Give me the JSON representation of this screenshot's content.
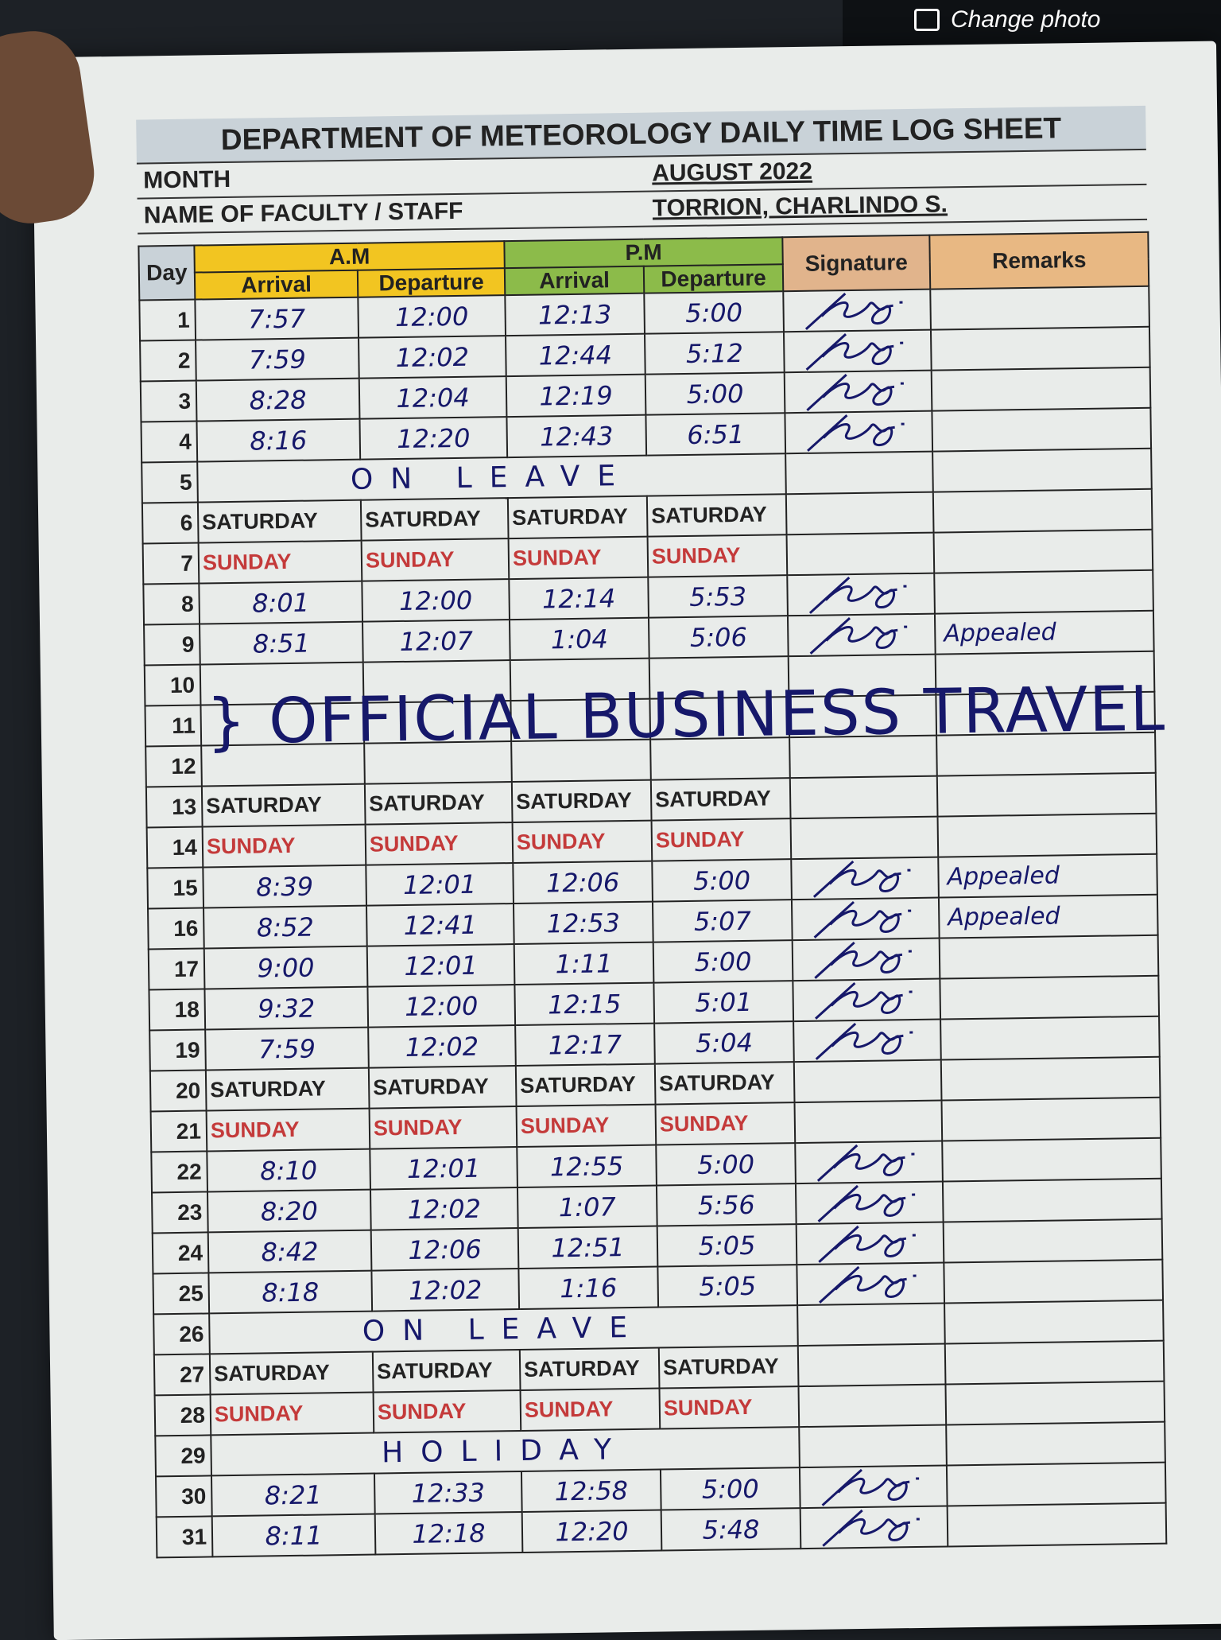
{
  "topbar": {
    "change_photo_label": "Change photo",
    "icon": "camera-icon"
  },
  "sheet": {
    "title": "DEPARTMENT OF METEOROLOGY DAILY TIME LOG SHEET",
    "month_label": "MONTH",
    "month_value": "AUGUST 2022",
    "name_label": "NAME OF FACULTY / STAFF",
    "name_value": "TORRION, CHARLINDO S."
  },
  "headers": {
    "day": "Day",
    "am": "A.M",
    "pm": "P.M",
    "arrival": "Arrival",
    "departure": "Departure",
    "signature": "Signature",
    "remarks": "Remarks"
  },
  "colors": {
    "am": "#f2c521",
    "pm": "#8cbb4a",
    "signature": "#e1b48c",
    "remarks": "#e8b883",
    "sunday": "#c43a3a",
    "ink": "#16186a"
  },
  "notes": {
    "official_business": "} OFFICIAL BUSINESS TRAVEL"
  },
  "rows": [
    {
      "day": "1",
      "type": "work",
      "v": [
        "7:57",
        "12:00",
        "12:13",
        "5:00"
      ],
      "signed": true,
      "remarks": ""
    },
    {
      "day": "2",
      "type": "work",
      "v": [
        "7:59",
        "12:02",
        "12:44",
        "5:12"
      ],
      "signed": true,
      "remarks": ""
    },
    {
      "day": "3",
      "type": "work",
      "v": [
        "8:28",
        "12:04",
        "12:19",
        "5:00"
      ],
      "signed": true,
      "remarks": ""
    },
    {
      "day": "4",
      "type": "work",
      "v": [
        "8:16",
        "12:20",
        "12:43",
        "6:51"
      ],
      "signed": true,
      "remarks": ""
    },
    {
      "day": "5",
      "type": "note",
      "note": "ON LEAVE",
      "signed": false,
      "remarks": ""
    },
    {
      "day": "6",
      "type": "sat",
      "label": "SATURDAY"
    },
    {
      "day": "7",
      "type": "sun",
      "label": "SUNDAY"
    },
    {
      "day": "8",
      "type": "work",
      "v": [
        "8:01",
        "12:00",
        "12:14",
        "5:53"
      ],
      "signed": true,
      "remarks": ""
    },
    {
      "day": "9",
      "type": "work",
      "v": [
        "8:51",
        "12:07",
        "1:04",
        "5:06"
      ],
      "signed": true,
      "remarks": "Appealed"
    },
    {
      "day": "10",
      "type": "ob"
    },
    {
      "day": "11",
      "type": "ob"
    },
    {
      "day": "12",
      "type": "ob"
    },
    {
      "day": "13",
      "type": "sat",
      "label": "SATURDAY"
    },
    {
      "day": "14",
      "type": "sun",
      "label": "SUNDAY"
    },
    {
      "day": "15",
      "type": "work",
      "v": [
        "8:39",
        "12:01",
        "12:06",
        "5:00"
      ],
      "signed": true,
      "remarks": "Appealed"
    },
    {
      "day": "16",
      "type": "work",
      "v": [
        "8:52",
        "12:41",
        "12:53",
        "5:07"
      ],
      "signed": true,
      "remarks": "Appealed"
    },
    {
      "day": "17",
      "type": "work",
      "v": [
        "9:00",
        "12:01",
        "1:11",
        "5:00"
      ],
      "signed": true,
      "remarks": ""
    },
    {
      "day": "18",
      "type": "work",
      "v": [
        "9:32",
        "12:00",
        "12:15",
        "5:01"
      ],
      "signed": true,
      "remarks": ""
    },
    {
      "day": "19",
      "type": "work",
      "v": [
        "7:59",
        "12:02",
        "12:17",
        "5:04"
      ],
      "signed": true,
      "remarks": ""
    },
    {
      "day": "20",
      "type": "sat",
      "label": "SATURDAY"
    },
    {
      "day": "21",
      "type": "sun",
      "label": "SUNDAY"
    },
    {
      "day": "22",
      "type": "work",
      "v": [
        "8:10",
        "12:01",
        "12:55",
        "5:00"
      ],
      "signed": true,
      "remarks": ""
    },
    {
      "day": "23",
      "type": "work",
      "v": [
        "8:20",
        "12:02",
        "1:07",
        "5:56"
      ],
      "signed": true,
      "remarks": ""
    },
    {
      "day": "24",
      "type": "work",
      "v": [
        "8:42",
        "12:06",
        "12:51",
        "5:05"
      ],
      "signed": true,
      "remarks": ""
    },
    {
      "day": "25",
      "type": "work",
      "v": [
        "8:18",
        "12:02",
        "1:16",
        "5:05"
      ],
      "signed": true,
      "remarks": ""
    },
    {
      "day": "26",
      "type": "note",
      "note": "ON LEAVE",
      "signed": false,
      "remarks": ""
    },
    {
      "day": "27",
      "type": "sat",
      "label": "SATURDAY"
    },
    {
      "day": "28",
      "type": "sun",
      "label": "SUNDAY"
    },
    {
      "day": "29",
      "type": "note",
      "note": "HOLIDAY",
      "signed": false,
      "remarks": ""
    },
    {
      "day": "30",
      "type": "work",
      "v": [
        "8:21",
        "12:33",
        "12:58",
        "5:00"
      ],
      "signed": true,
      "remarks": ""
    },
    {
      "day": "31",
      "type": "work",
      "v": [
        "8:11",
        "12:18",
        "12:20",
        "5:48"
      ],
      "signed": true,
      "remarks": ""
    }
  ]
}
